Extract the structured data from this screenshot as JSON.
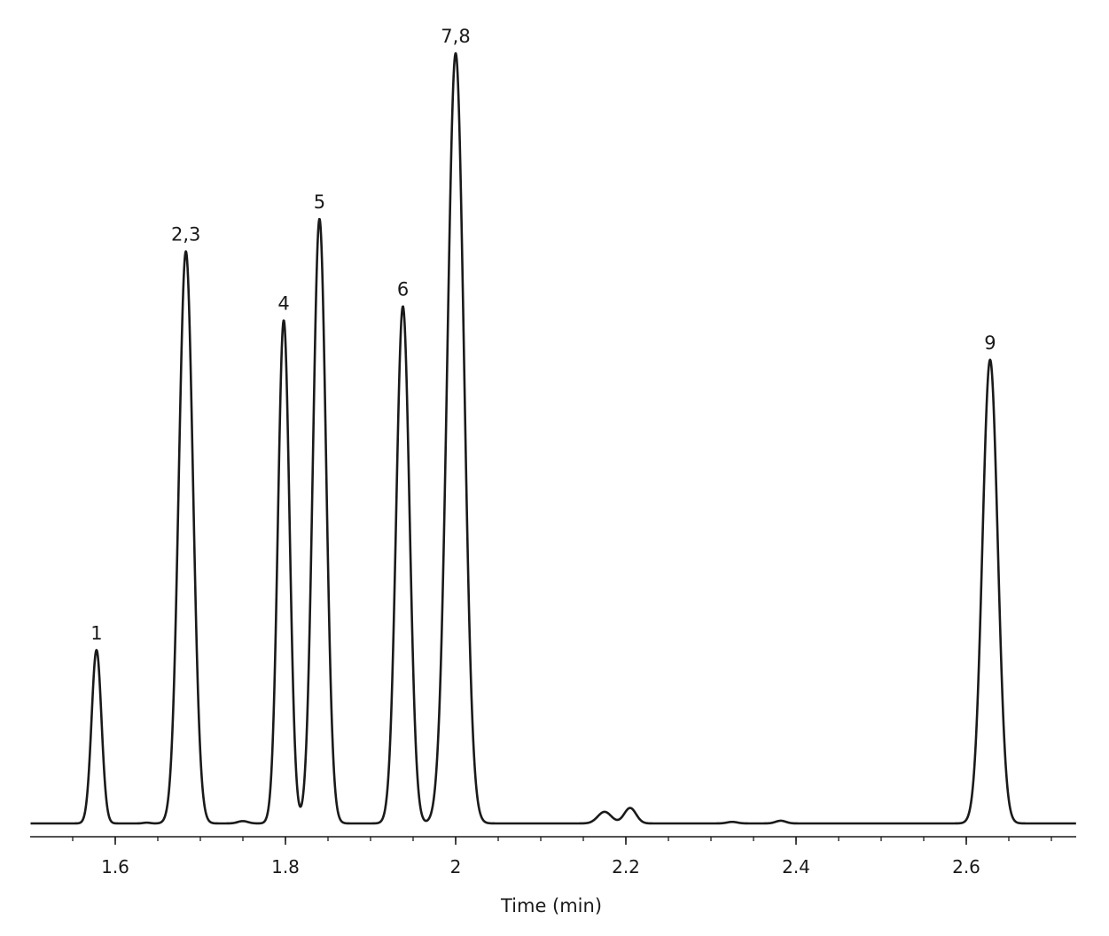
{
  "chart_data": {
    "type": "line",
    "title": "",
    "xlabel": "Time (min)",
    "ylabel": "",
    "xlim": [
      1.5,
      2.73
    ],
    "ylim": [
      0,
      100
    ],
    "grid": false,
    "legend": "none",
    "line_color": "#1a1a1a",
    "x_ticks": [
      {
        "value": 1.6,
        "label": "1.6"
      },
      {
        "value": 1.8,
        "label": "1.8"
      },
      {
        "value": 2.0,
        "label": "2"
      },
      {
        "value": 2.2,
        "label": "2.2"
      },
      {
        "value": 2.4,
        "label": "2.4"
      },
      {
        "value": 2.6,
        "label": "2.6"
      }
    ],
    "minor_tick_step": 0.05,
    "baseline": 0.5,
    "peaks": [
      {
        "label": "1",
        "x": 1.578,
        "height": 22.9,
        "sigma": 0.0058
      },
      {
        "label": "2,3",
        "x": 1.683,
        "height": 74.4,
        "sigma": 0.0083
      },
      {
        "label": "4",
        "x": 1.798,
        "height": 65.5,
        "sigma": 0.0068
      },
      {
        "label": "5",
        "x": 1.84,
        "height": 78.6,
        "sigma": 0.0077
      },
      {
        "label": "6",
        "x": 1.938,
        "height": 67.3,
        "sigma": 0.0078
      },
      {
        "label": "7,8",
        "x": 2.0,
        "height": 100.0,
        "sigma": 0.0098
      },
      {
        "label": "9",
        "x": 2.628,
        "height": 60.4,
        "sigma": 0.009
      }
    ],
    "minor_features": [
      {
        "x": 1.637,
        "height": 0.6,
        "sigma": 0.004
      },
      {
        "x": 1.75,
        "height": 0.3,
        "sigma": 0.006
      },
      {
        "x": 2.175,
        "height": 2.0,
        "sigma": 0.008
      },
      {
        "x": 2.205,
        "height": 2.5,
        "sigma": 0.007
      },
      {
        "x": 2.325,
        "height": 0.2,
        "sigma": 0.006
      },
      {
        "x": 2.382,
        "height": 0.35,
        "sigma": 0.006
      },
      {
        "x": 2.548,
        "height": 0.5,
        "sigma": 0.006
      }
    ]
  }
}
